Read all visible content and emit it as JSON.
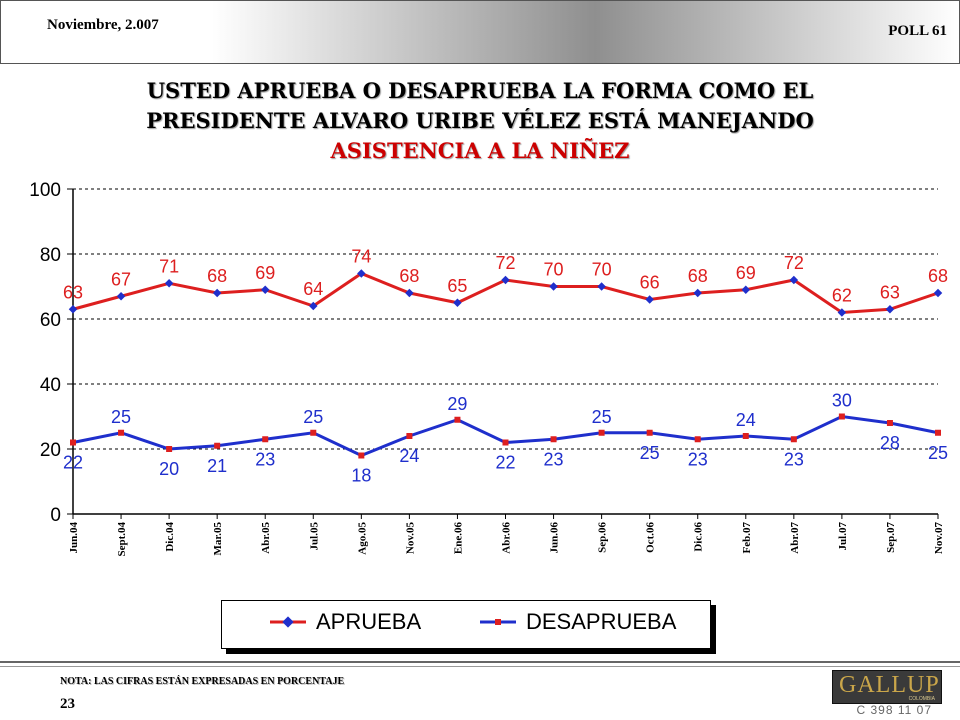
{
  "header": {
    "date": "Noviembre, 2.007",
    "poll": "POLL 61"
  },
  "title": {
    "line1": "USTED APRUEBA O DESAPRUEBA LA FORMA COMO EL",
    "line2": "PRESIDENTE ALVARO URIBE VÉLEZ ESTÁ MANEJANDO",
    "line3": "ASISTENCIA A LA NIÑEZ"
  },
  "colors": {
    "aprueba": "#dd1f1f",
    "desaprueba": "#1f2fcc",
    "marker_aprueba": "#1f2fcc",
    "marker_desaprueba": "#dd1f1f"
  },
  "chart_data": {
    "type": "line",
    "title": "USTED APRUEBA O DESAPRUEBA LA FORMA COMO EL PRESIDENTE ALVARO URIBE VÉLEZ ESTÁ MANEJANDO ASISTENCIA A LA NIÑEZ",
    "categories": [
      "Jun.04",
      "Sept.04",
      "Dic.04",
      "Mar.05",
      "Abr.05",
      "Jul.05",
      "Ago.05",
      "Nov.05",
      "Ene.06",
      "Abr.06",
      "Jun.06",
      "Sep.06",
      "Oct.06",
      "Dic.06",
      "Feb.07",
      "Abr.07",
      "Jul.07",
      "Sep.07",
      "Nov.07"
    ],
    "series": [
      {
        "name": "APRUEBA",
        "values": [
          63,
          67,
          71,
          68,
          69,
          64,
          74,
          68,
          65,
          72,
          70,
          70,
          66,
          68,
          69,
          72,
          62,
          63,
          68
        ]
      },
      {
        "name": "DESAPRUEBA",
        "values": [
          22,
          25,
          20,
          21,
          23,
          25,
          18,
          24,
          29,
          22,
          23,
          25,
          25,
          23,
          24,
          23,
          30,
          28,
          25
        ]
      }
    ],
    "yticks": [
      0,
      20,
      40,
      60,
      80,
      100
    ],
    "ylim": [
      0,
      100
    ],
    "xlabel": "",
    "ylabel": "",
    "grid": "horizontal dashed",
    "legend": "bottom"
  },
  "footer": {
    "note": "NOTA: LAS CIFRAS ESTÁN EXPRESADAS EN PORCENTAJE",
    "page": "23",
    "logo": "GALLUP",
    "logo_sub": "COLOMBIA",
    "code": "C 398 11 07"
  }
}
